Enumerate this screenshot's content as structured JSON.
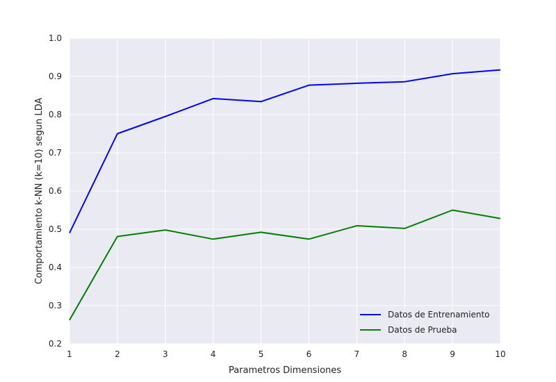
{
  "chart_data": {
    "type": "line",
    "title": "",
    "xlabel": "Parametros Dimensiones",
    "ylabel": "Comportamiento k-NN (k=10) segun LDA",
    "xlim": [
      1,
      10
    ],
    "ylim": [
      0.2,
      1.0
    ],
    "xticks": [
      "1",
      "2",
      "3",
      "4",
      "5",
      "6",
      "7",
      "8",
      "9",
      "10"
    ],
    "yticks": [
      "0.2",
      "0.3",
      "0.4",
      "0.5",
      "0.6",
      "0.7",
      "0.8",
      "0.9",
      "1.0"
    ],
    "grid": true,
    "legend_position": "lower-right",
    "x": [
      1,
      2,
      3,
      4,
      5,
      6,
      7,
      8,
      9,
      10
    ],
    "series": [
      {
        "name": "Datos de Entrenamiento",
        "color": "#0000ff",
        "values": [
          0.49,
          0.75,
          0.795,
          0.842,
          0.834,
          0.877,
          0.882,
          0.886,
          0.907,
          0.917
        ]
      },
      {
        "name": "Datos de Prueba",
        "color": "#008000",
        "values": [
          0.262,
          0.481,
          0.498,
          0.474,
          0.492,
          0.474,
          0.509,
          0.502,
          0.55,
          0.528
        ]
      }
    ],
    "background_color": "#eaeaf2",
    "grid_color": "#ffffff"
  }
}
